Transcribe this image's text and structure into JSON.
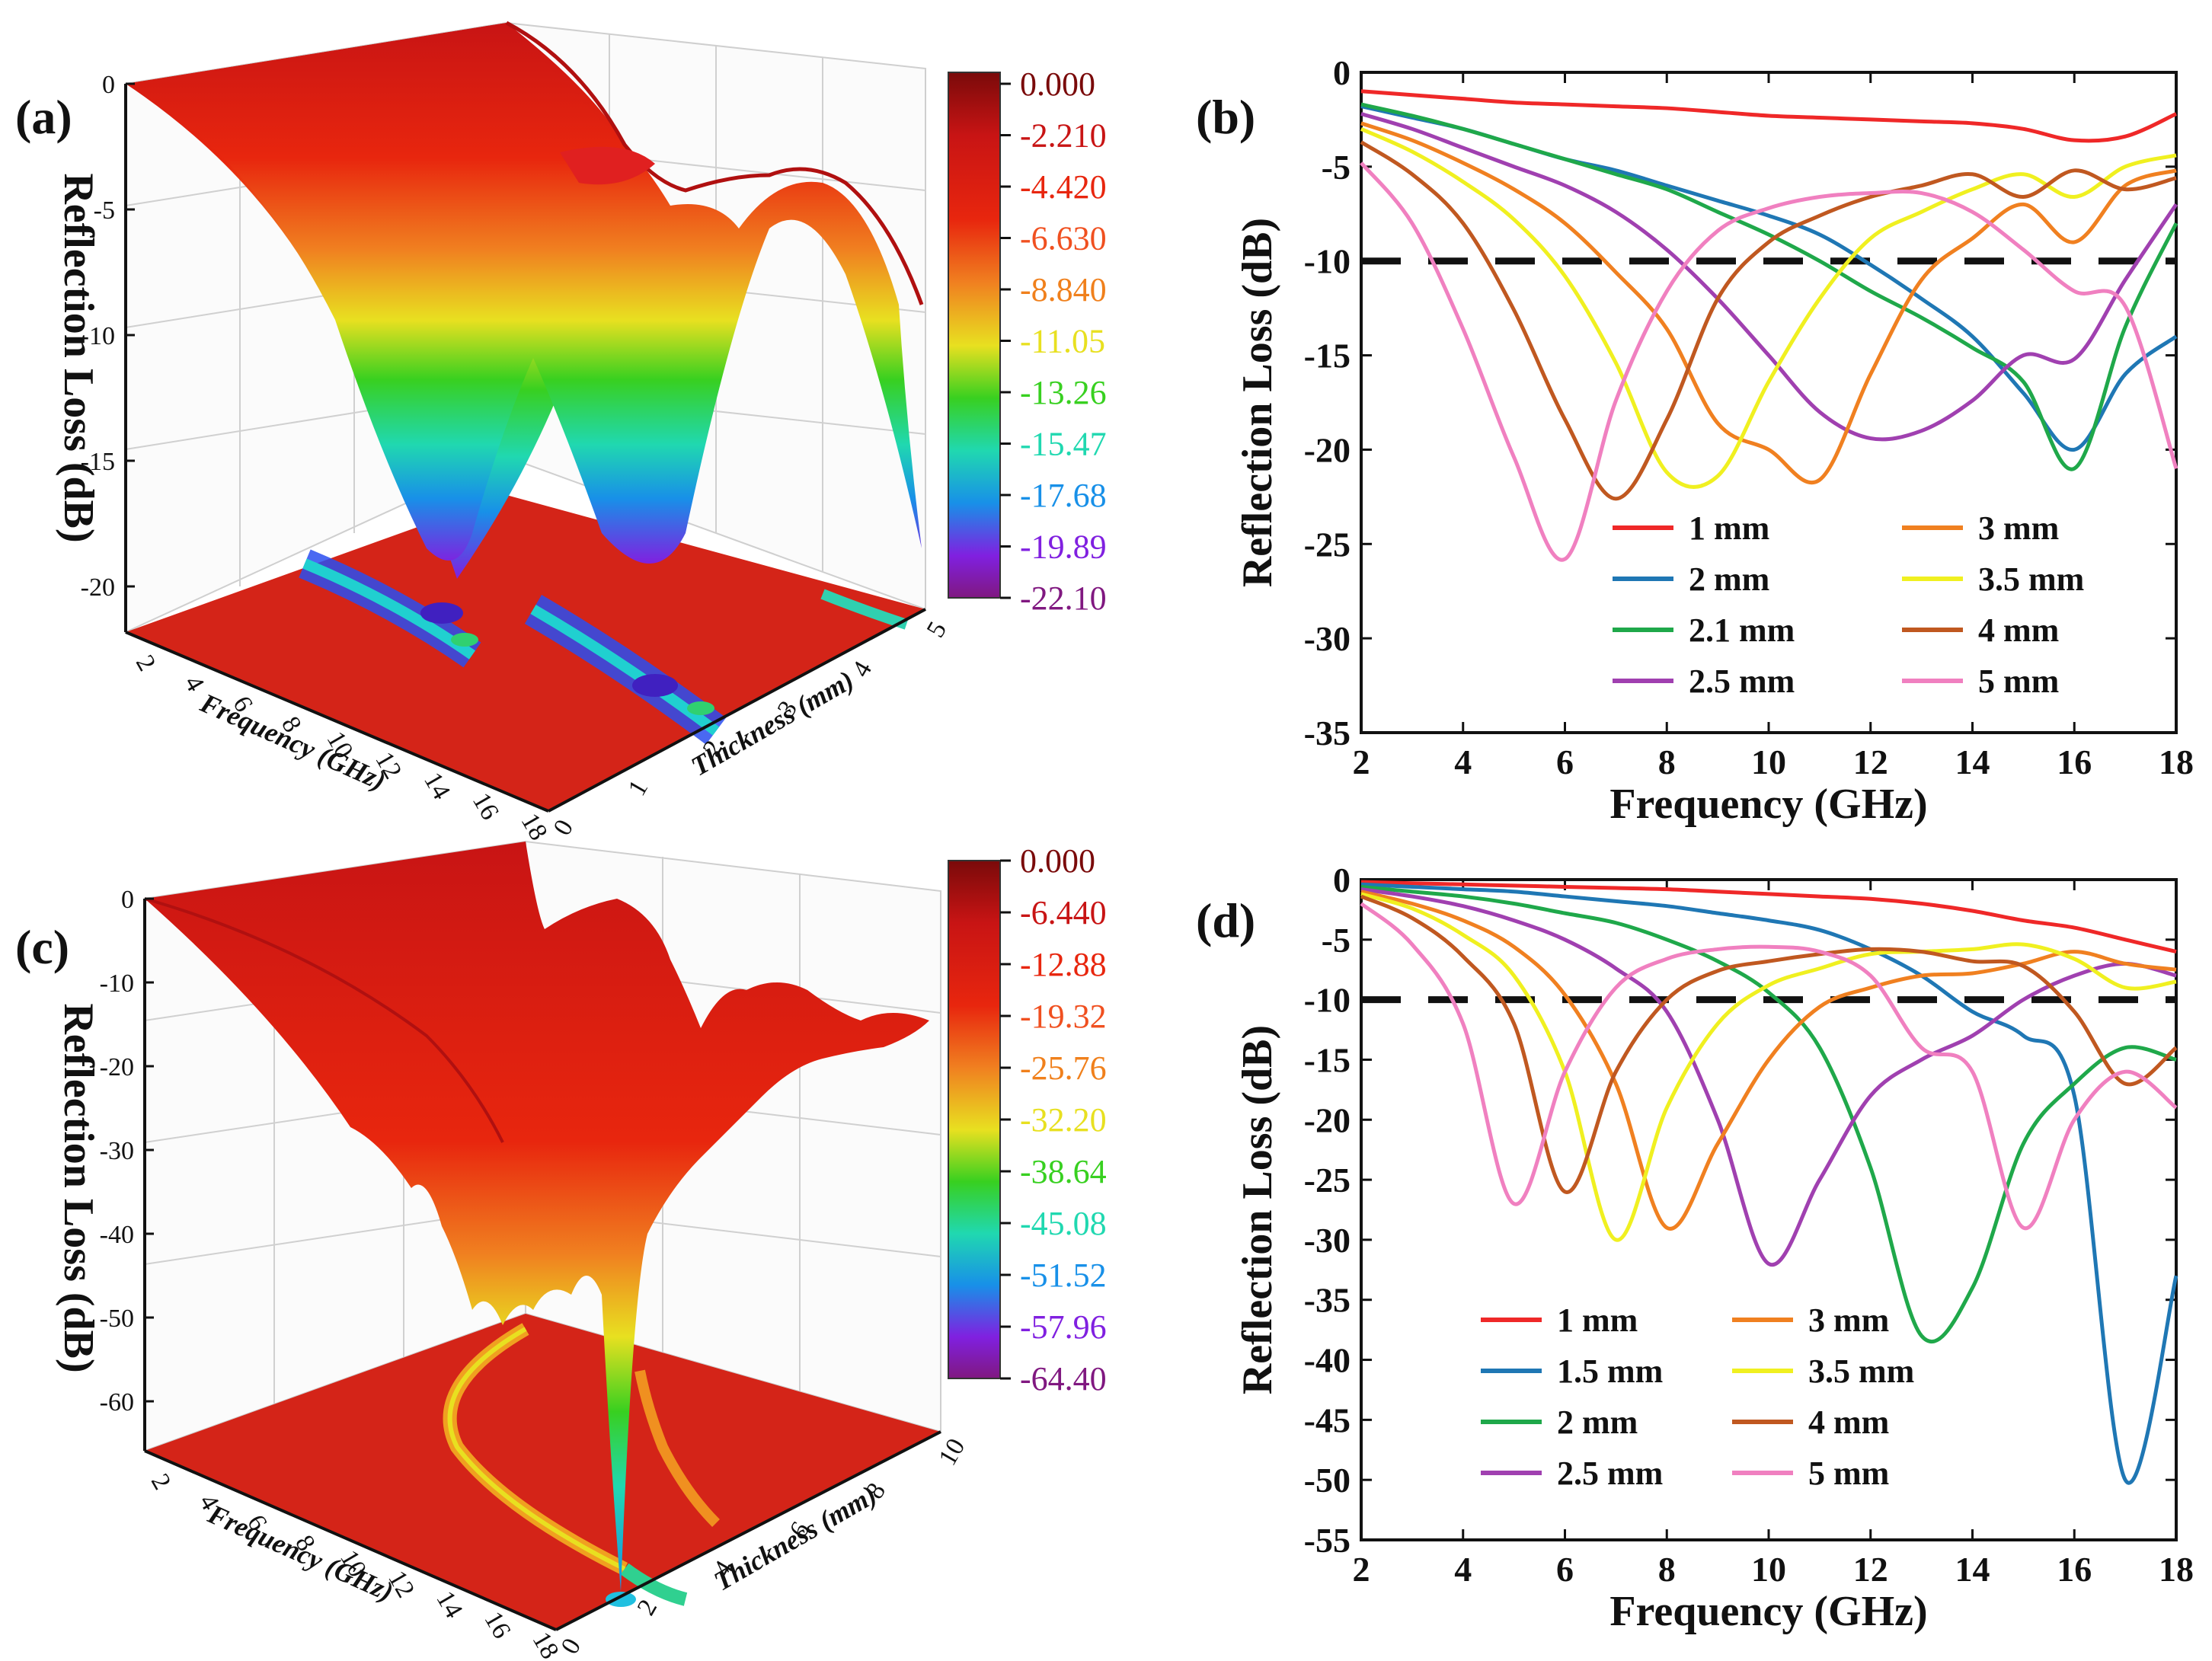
{
  "chart_data": [
    {
      "panel": "(a)",
      "type": "surface3d",
      "zlabel": "Reflection Loss (dB)",
      "xlabel": "Frequency (GHz)",
      "ylabel": "Thickness (mm)",
      "x_ticks": [
        "2",
        "4",
        "6",
        "8",
        "10",
        "12",
        "14",
        "16",
        "18"
      ],
      "y_ticks": [
        "0",
        "1",
        "2",
        "3",
        "4",
        "5"
      ],
      "z_ticks": [
        "0",
        "-5",
        "-10",
        "-15",
        "-20"
      ],
      "colorbar": [
        "0.000",
        "-2.210",
        "-4.420",
        "-6.630",
        "-8.840",
        "-11.05",
        "-13.26",
        "-15.47",
        "-17.68",
        "-19.89",
        "-22.10"
      ],
      "colorbar_colors": [
        "#7a0a0a",
        "#c81414",
        "#e8260e",
        "#f05020",
        "#f0801c",
        "#e8e020",
        "#38d020",
        "#20d8b0",
        "#1890e8",
        "#8020e0",
        "#801880"
      ]
    },
    {
      "panel": "(b)",
      "type": "line",
      "xlabel": "Frequency (GHz)",
      "ylabel": "Reflection Loss (dB)",
      "xlim": [
        2,
        18
      ],
      "ylim": [
        -35,
        0
      ],
      "x_ticks": [
        "2",
        "4",
        "6",
        "8",
        "10",
        "12",
        "14",
        "16",
        "18"
      ],
      "y_ticks": [
        "0",
        "-5",
        "-10",
        "-15",
        "-20",
        "-25",
        "-30",
        "-35"
      ],
      "threshold": -10,
      "x": [
        2,
        3,
        4,
        5,
        6,
        7,
        8,
        9,
        10,
        11,
        12,
        13,
        14,
        15,
        16,
        17,
        18
      ],
      "legend_columns": 2,
      "series": [
        {
          "name": "1 mm",
          "color": "#ef2828",
          "values": [
            -1.0,
            -1.2,
            -1.4,
            -1.6,
            -1.7,
            -1.8,
            -1.9,
            -2.1,
            -2.3,
            -2.4,
            -2.5,
            -2.6,
            -2.7,
            -3.0,
            -3.6,
            -3.4,
            -2.2
          ]
        },
        {
          "name": "2 mm",
          "color": "#1f77b4",
          "values": [
            -1.8,
            -2.4,
            -3.0,
            -3.8,
            -4.6,
            -5.2,
            -6.0,
            -6.8,
            -7.6,
            -8.6,
            -10.2,
            -12.0,
            -14.0,
            -17.0,
            -20.0,
            -16.0,
            -14.0
          ]
        },
        {
          "name": "2.1 mm",
          "color": "#1fa84a",
          "values": [
            -1.7,
            -2.3,
            -3.0,
            -3.8,
            -4.6,
            -5.4,
            -6.2,
            -7.4,
            -8.6,
            -10.0,
            -11.6,
            -13.0,
            -14.6,
            -16.4,
            -21.0,
            -13.5,
            -8.0
          ]
        },
        {
          "name": "2.5 mm",
          "color": "#a040b0",
          "values": [
            -2.2,
            -3.0,
            -4.0,
            -5.0,
            -6.0,
            -7.4,
            -9.4,
            -12.0,
            -15.0,
            -18.0,
            -19.4,
            -19.0,
            -17.4,
            -15.0,
            -15.2,
            -11.0,
            -7.0
          ]
        },
        {
          "name": "3 mm",
          "color": "#f08020",
          "values": [
            -2.7,
            -3.6,
            -4.8,
            -6.2,
            -8.0,
            -10.6,
            -13.6,
            -18.6,
            -20.0,
            -21.6,
            -16.0,
            -11.0,
            -8.8,
            -7.0,
            -9.0,
            -6.0,
            -5.2
          ]
        },
        {
          "name": "3.5 mm",
          "color": "#f0f020",
          "values": [
            -3.0,
            -4.2,
            -5.8,
            -7.8,
            -10.8,
            -15.4,
            -21.2,
            -21.4,
            -16.4,
            -12.0,
            -8.8,
            -7.4,
            -6.2,
            -5.4,
            -6.6,
            -5.0,
            -4.4
          ]
        },
        {
          "name": "4 mm",
          "color": "#c05820",
          "values": [
            -3.7,
            -5.4,
            -8.0,
            -12.6,
            -18.4,
            -22.6,
            -18.4,
            -12.0,
            -9.0,
            -7.6,
            -6.6,
            -6.0,
            -5.4,
            -6.6,
            -5.2,
            -6.2,
            -5.6
          ]
        },
        {
          "name": "5 mm",
          "color": "#f080c0",
          "values": [
            -4.8,
            -8.0,
            -13.6,
            -20.4,
            -25.8,
            -17.4,
            -11.6,
            -8.4,
            -7.2,
            -6.6,
            -6.4,
            -6.4,
            -7.4,
            -9.4,
            -11.6,
            -12.4,
            -21.0
          ]
        }
      ]
    },
    {
      "panel": "(c)",
      "type": "surface3d",
      "zlabel": "Reflection Loss (dB)",
      "xlabel": "Frequency (GHz)",
      "ylabel": "Thickness (mm)",
      "x_ticks": [
        "2",
        "4",
        "6",
        "8",
        "10",
        "12",
        "14",
        "16",
        "18"
      ],
      "y_ticks": [
        "0",
        "2",
        "4",
        "6",
        "8",
        "10"
      ],
      "z_ticks": [
        "0",
        "-10",
        "-20",
        "-30",
        "-40",
        "-50",
        "-60"
      ],
      "colorbar": [
        "0.000",
        "-6.440",
        "-12.88",
        "-19.32",
        "-25.76",
        "-32.20",
        "-38.64",
        "-45.08",
        "-51.52",
        "-57.96",
        "-64.40"
      ],
      "colorbar_colors": [
        "#7a0a0a",
        "#c81414",
        "#e8260e",
        "#f05020",
        "#f0801c",
        "#e8e020",
        "#38d020",
        "#20d8b0",
        "#1890e8",
        "#8020e0",
        "#801880"
      ]
    },
    {
      "panel": "(d)",
      "type": "line",
      "xlabel": "Frequency (GHz)",
      "ylabel": "Reflection Loss (dB)",
      "xlim": [
        2,
        18
      ],
      "ylim": [
        -55,
        0
      ],
      "x_ticks": [
        "2",
        "4",
        "6",
        "8",
        "10",
        "12",
        "14",
        "16",
        "18"
      ],
      "y_ticks": [
        "0",
        "-5",
        "-10",
        "-15",
        "-20",
        "-25",
        "-30",
        "-35",
        "-40",
        "-45",
        "-50",
        "-55"
      ],
      "threshold": -10,
      "x": [
        2,
        3,
        4,
        5,
        6,
        7,
        8,
        9,
        10,
        11,
        12,
        13,
        14,
        15,
        16,
        17,
        18
      ],
      "legend_columns": 2,
      "series": [
        {
          "name": "1 mm",
          "color": "#ef2828",
          "values": [
            -0.2,
            -0.3,
            -0.4,
            -0.5,
            -0.6,
            -0.7,
            -0.8,
            -1.0,
            -1.2,
            -1.4,
            -1.6,
            -2.0,
            -2.6,
            -3.4,
            -4.0,
            -5.0,
            -6.0
          ]
        },
        {
          "name": "1.5 mm",
          "color": "#1f77b4",
          "values": [
            -0.4,
            -0.6,
            -0.8,
            -1.0,
            -1.4,
            -1.8,
            -2.2,
            -2.8,
            -3.4,
            -4.2,
            -5.8,
            -8.0,
            -11.0,
            -13.0,
            -18.0,
            -50.0,
            -33.0
          ]
        },
        {
          "name": "2 mm",
          "color": "#1fa84a",
          "values": [
            -0.6,
            -1.0,
            -1.4,
            -2.0,
            -2.8,
            -3.6,
            -5.0,
            -6.8,
            -9.4,
            -14.0,
            -24.0,
            -38.0,
            -34.0,
            -22.0,
            -17.0,
            -14.0,
            -15.0
          ]
        },
        {
          "name": "2.5 mm",
          "color": "#a040b0",
          "values": [
            -0.8,
            -1.4,
            -2.2,
            -3.4,
            -5.0,
            -7.4,
            -11.0,
            -20.0,
            -32.0,
            -25.0,
            -18.0,
            -15.0,
            -13.0,
            -10.0,
            -8.0,
            -7.0,
            -8.0
          ]
        },
        {
          "name": "3 mm",
          "color": "#f08020",
          "values": [
            -1.0,
            -2.0,
            -3.4,
            -5.6,
            -9.6,
            -17.0,
            -29.0,
            -22.0,
            -15.0,
            -10.6,
            -9.0,
            -8.0,
            -7.8,
            -7.0,
            -6.0,
            -7.0,
            -7.5
          ]
        },
        {
          "name": "3.5 mm",
          "color": "#f0f020",
          "values": [
            -1.2,
            -2.4,
            -4.6,
            -8.0,
            -16.0,
            -30.0,
            -19.0,
            -12.0,
            -8.8,
            -7.4,
            -6.2,
            -6.0,
            -5.8,
            -5.4,
            -6.6,
            -9.0,
            -8.5
          ]
        },
        {
          "name": "4 mm",
          "color": "#c05820",
          "values": [
            -1.4,
            -3.2,
            -6.4,
            -12.0,
            -26.0,
            -16.0,
            -10.0,
            -7.6,
            -6.8,
            -6.2,
            -5.8,
            -6.0,
            -6.8,
            -7.2,
            -11.0,
            -17.0,
            -14.0
          ]
        },
        {
          "name": "5 mm",
          "color": "#f080c0",
          "values": [
            -2.0,
            -5.4,
            -12.0,
            -27.0,
            -16.0,
            -9.0,
            -6.6,
            -5.8,
            -5.6,
            -6.0,
            -8.0,
            -14.0,
            -16.0,
            -29.0,
            -20.0,
            -16.0,
            -19.0
          ]
        }
      ]
    }
  ]
}
